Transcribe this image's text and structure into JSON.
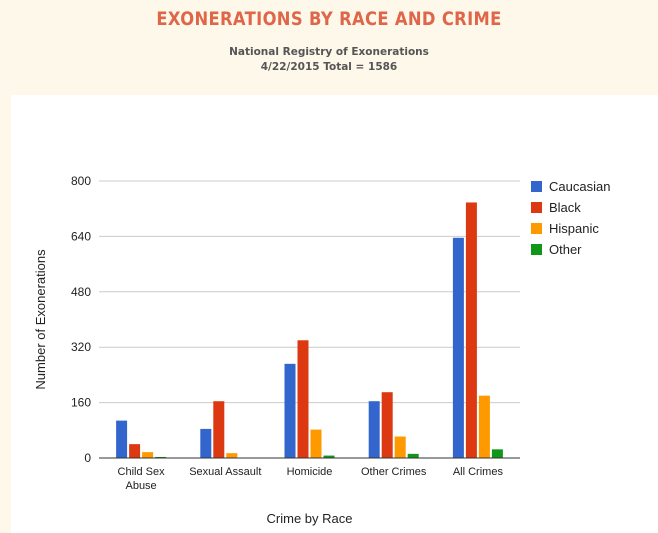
{
  "header": {
    "title": "EXONERATIONS BY RACE AND CRIME",
    "source": "National Registry of Exonerations",
    "date_total": "4/22/2015 Total = 1586"
  },
  "chart_data": {
    "type": "bar",
    "title": "",
    "xlabel": "Crime by Race",
    "ylabel": "Number of Exonerations",
    "categories": [
      [
        "Child Sex",
        "Abuse"
      ],
      [
        "Sexual Assault"
      ],
      [
        "Homicide"
      ],
      [
        "Other Crimes"
      ],
      [
        "All Crimes"
      ]
    ],
    "ylim": [
      0,
      800
    ],
    "yticks": [
      0,
      160,
      320,
      480,
      640,
      800
    ],
    "grid": true,
    "legend_position": "right",
    "series": [
      {
        "name": "Caucasian",
        "color": "#3366cc",
        "values": [
          108,
          84,
          272,
          164,
          636
        ]
      },
      {
        "name": "Black",
        "color": "#dc3912",
        "values": [
          40,
          164,
          340,
          190,
          738
        ]
      },
      {
        "name": "Hispanic",
        "color": "#ff9900",
        "values": [
          17,
          14,
          82,
          62,
          180
        ]
      },
      {
        "name": "Other",
        "color": "#109618",
        "values": [
          3,
          1,
          7,
          12,
          25
        ]
      }
    ]
  }
}
